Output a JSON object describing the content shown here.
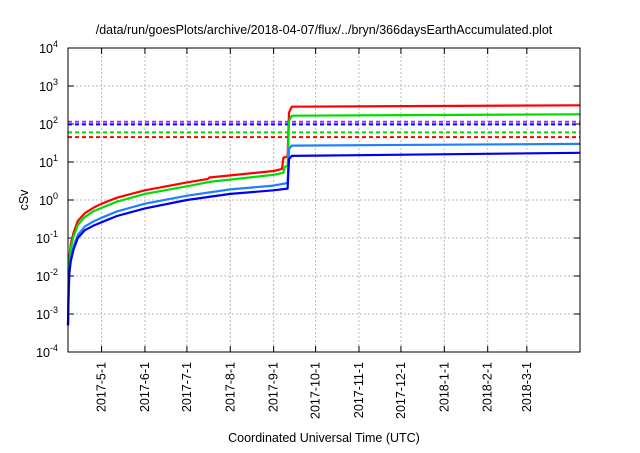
{
  "chart_data": {
    "type": "line",
    "title": "/data/run/goesPlots/archive/2018-04-07/flux/../bryn/366daysEarthAccumulated.plot",
    "xlabel": "Coordinated Universal Time (UTC)",
    "ylabel": "cSv",
    "x_units": "days since 2017-04-07",
    "xlim": [
      0,
      366
    ],
    "ylim": [
      0.0001,
      10000
    ],
    "yscale": "log",
    "grid": true,
    "yticks": [
      {
        "value": 0.0001,
        "base": "10",
        "exp": "-4"
      },
      {
        "value": 0.001,
        "base": "10",
        "exp": "-3"
      },
      {
        "value": 0.01,
        "base": "10",
        "exp": "-2"
      },
      {
        "value": 0.1,
        "base": "10",
        "exp": "-1"
      },
      {
        "value": 1,
        "base": "10",
        "exp": "0"
      },
      {
        "value": 10,
        "base": "10",
        "exp": "1"
      },
      {
        "value": 100,
        "base": "10",
        "exp": "2"
      },
      {
        "value": 1000,
        "base": "10",
        "exp": "3"
      },
      {
        "value": 10000,
        "base": "10",
        "exp": "4"
      }
    ],
    "xticks": [
      {
        "day": 24,
        "label": "2017-5-1"
      },
      {
        "day": 55,
        "label": "2017-6-1"
      },
      {
        "day": 85,
        "label": "2017-7-1"
      },
      {
        "day": 116,
        "label": "2017-8-1"
      },
      {
        "day": 147,
        "label": "2017-9-1"
      },
      {
        "day": 177,
        "label": "2017-10-1"
      },
      {
        "day": 208,
        "label": "2017-11-1"
      },
      {
        "day": 238,
        "label": "2017-12-1"
      },
      {
        "day": 269,
        "label": "2018-1-1"
      },
      {
        "day": 300,
        "label": "2018-2-1"
      },
      {
        "day": 328,
        "label": "2018-3-1"
      }
    ],
    "series": [
      {
        "name": "red",
        "color": "#ff0000",
        "points": [
          [
            0,
            0.0005
          ],
          [
            0.5,
            0.01
          ],
          [
            1,
            0.03
          ],
          [
            2,
            0.07
          ],
          [
            4,
            0.14
          ],
          [
            7,
            0.28
          ],
          [
            12,
            0.45
          ],
          [
            18,
            0.62
          ],
          [
            24,
            0.8
          ],
          [
            35,
            1.15
          ],
          [
            55,
            1.8
          ],
          [
            85,
            2.9
          ],
          [
            100,
            3.6
          ],
          [
            101,
            3.9
          ],
          [
            147,
            5.8
          ],
          [
            153,
            6.6
          ],
          [
            154,
            13
          ],
          [
            157,
            14
          ],
          [
            158,
            200
          ],
          [
            160,
            285
          ],
          [
            366,
            310
          ]
        ]
      },
      {
        "name": "green",
        "color": "#00dd00",
        "points": [
          [
            0,
            0.0005
          ],
          [
            0.5,
            0.008
          ],
          [
            1,
            0.025
          ],
          [
            2,
            0.055
          ],
          [
            4,
            0.11
          ],
          [
            7,
            0.22
          ],
          [
            12,
            0.36
          ],
          [
            18,
            0.5
          ],
          [
            24,
            0.62
          ],
          [
            35,
            0.9
          ],
          [
            55,
            1.45
          ],
          [
            85,
            2.3
          ],
          [
            101,
            3.0
          ],
          [
            147,
            4.6
          ],
          [
            154,
            5.2
          ],
          [
            155,
            7.5
          ],
          [
            157,
            7.8
          ],
          [
            158,
            120
          ],
          [
            160,
            165
          ],
          [
            366,
            180
          ]
        ]
      },
      {
        "name": "light-blue",
        "color": "#1e7fff",
        "points": [
          [
            0,
            0.0005
          ],
          [
            0.5,
            0.005
          ],
          [
            1,
            0.015
          ],
          [
            2,
            0.03
          ],
          [
            4,
            0.06
          ],
          [
            7,
            0.12
          ],
          [
            12,
            0.2
          ],
          [
            18,
            0.27
          ],
          [
            24,
            0.34
          ],
          [
            35,
            0.5
          ],
          [
            55,
            0.8
          ],
          [
            85,
            1.3
          ],
          [
            116,
            1.9
          ],
          [
            147,
            2.4
          ],
          [
            157,
            2.8
          ],
          [
            158,
            22
          ],
          [
            160,
            27
          ],
          [
            366,
            30
          ]
        ]
      },
      {
        "name": "blue",
        "color": "#0000ee",
        "points": [
          [
            0,
            0.0005
          ],
          [
            0.5,
            0.004
          ],
          [
            1,
            0.012
          ],
          [
            2,
            0.025
          ],
          [
            4,
            0.05
          ],
          [
            7,
            0.1
          ],
          [
            12,
            0.16
          ],
          [
            18,
            0.21
          ],
          [
            24,
            0.26
          ],
          [
            35,
            0.38
          ],
          [
            55,
            0.6
          ],
          [
            85,
            1.0
          ],
          [
            116,
            1.45
          ],
          [
            147,
            1.8
          ],
          [
            157,
            2.0
          ],
          [
            158,
            12
          ],
          [
            160,
            14.5
          ],
          [
            366,
            17.5
          ]
        ]
      }
    ],
    "thresholds": [
      {
        "name": "purple-threshold",
        "color": "#9933ff",
        "value": 115
      },
      {
        "name": "blue-threshold",
        "color": "#0000ee",
        "value": 98
      },
      {
        "name": "green-threshold",
        "color": "#00dd00",
        "value": 60
      },
      {
        "name": "red-threshold",
        "color": "#ff0000",
        "value": 45
      }
    ]
  }
}
